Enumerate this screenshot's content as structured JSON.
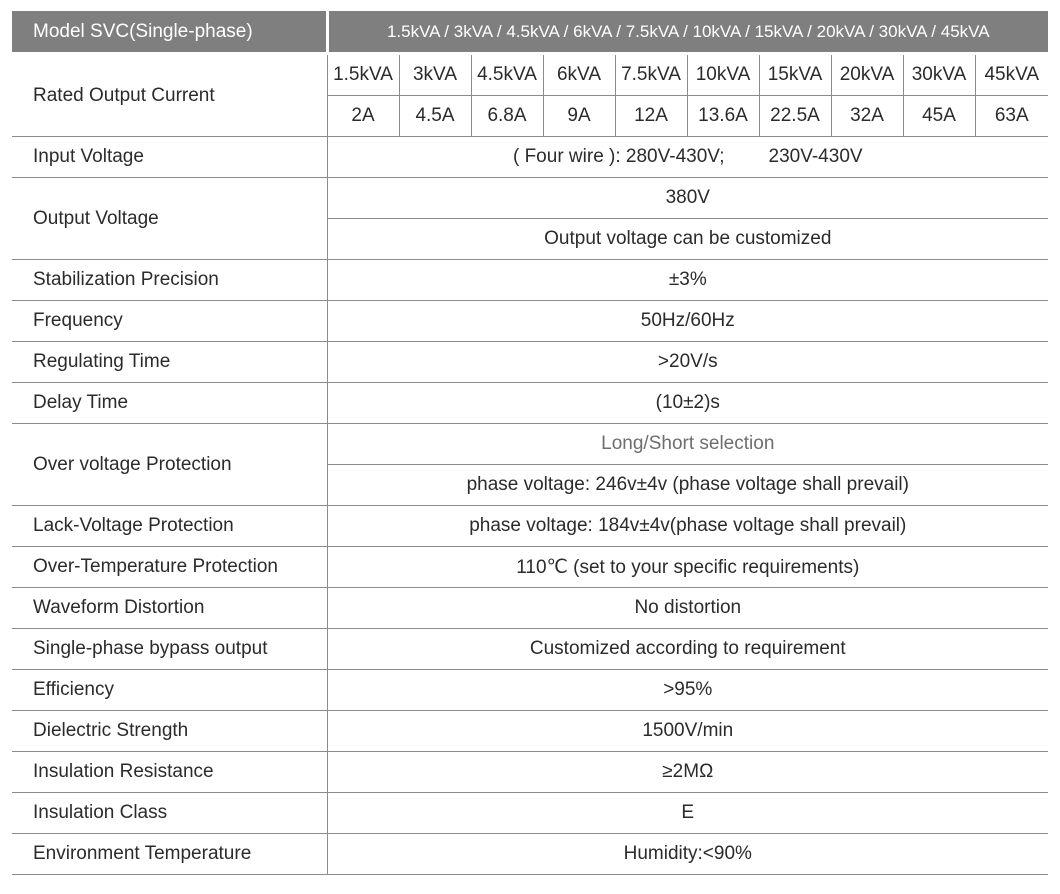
{
  "header": {
    "model_label": "Model  SVC(Single-phase)",
    "capacities": "1.5kVA / 3kVA / 4.5kVA / 6kVA / 7.5kVA / 10kVA / 15kVA / 20kVA / 30kVA / 45kVA"
  },
  "rated_current": {
    "label": "Rated Output Current",
    "ratings": [
      "1.5kVA",
      "3kVA",
      "4.5kVA",
      "6kVA",
      "7.5kVA",
      "10kVA",
      "15kVA",
      "20kVA",
      "30kVA",
      "45kVA"
    ],
    "currents": [
      "2A",
      "4.5A",
      "6.8A",
      "9A",
      "12A",
      "13.6A",
      "22.5A",
      "32A",
      "45A",
      "63A"
    ]
  },
  "input_voltage": {
    "label": "Input Voltage",
    "value_a": "( Four wire ): 280V-430V;",
    "value_b": "230V-430V"
  },
  "output_voltage": {
    "label": "Output Voltage",
    "value": "380V",
    "note": "Output voltage can be customized"
  },
  "stabilization": {
    "label": "Stabilization Precision",
    "value": "±3%"
  },
  "frequency": {
    "label": "Frequency",
    "value": "50Hz/60Hz"
  },
  "regulating_time": {
    "label": "Regulating Time",
    "value": ">20V/s"
  },
  "delay_time": {
    "label": "Delay Time",
    "value": "(10±2)s"
  },
  "over_voltage": {
    "label": "Over voltage Protection",
    "value": "Long/Short selection",
    "note": "phase voltage: 246v±4v (phase voltage shall prevail)"
  },
  "lack_voltage": {
    "label": "Lack-Voltage Protection",
    "value": "phase voltage: 184v±4v(phase voltage shall prevail)"
  },
  "over_temperature": {
    "label": "Over-Temperature Protection",
    "value": "110℃ (set to your specific requirements)"
  },
  "waveform": {
    "label": "Waveform Distortion",
    "value": "No distortion"
  },
  "bypass": {
    "label": "Single-phase bypass output",
    "value": "Customized according to requirement"
  },
  "efficiency": {
    "label": "Efficiency",
    "value": ">95%"
  },
  "dielectric": {
    "label": "Dielectric Strength",
    "value": "1500V/min"
  },
  "insulation_resistance": {
    "label": "Insulation Resistance",
    "value": "≥2MΩ"
  },
  "insulation_class": {
    "label": "Insulation Class",
    "value": "E"
  },
  "environment": {
    "label": "Environment Temperature",
    "value": "Humidity:<90%"
  }
}
